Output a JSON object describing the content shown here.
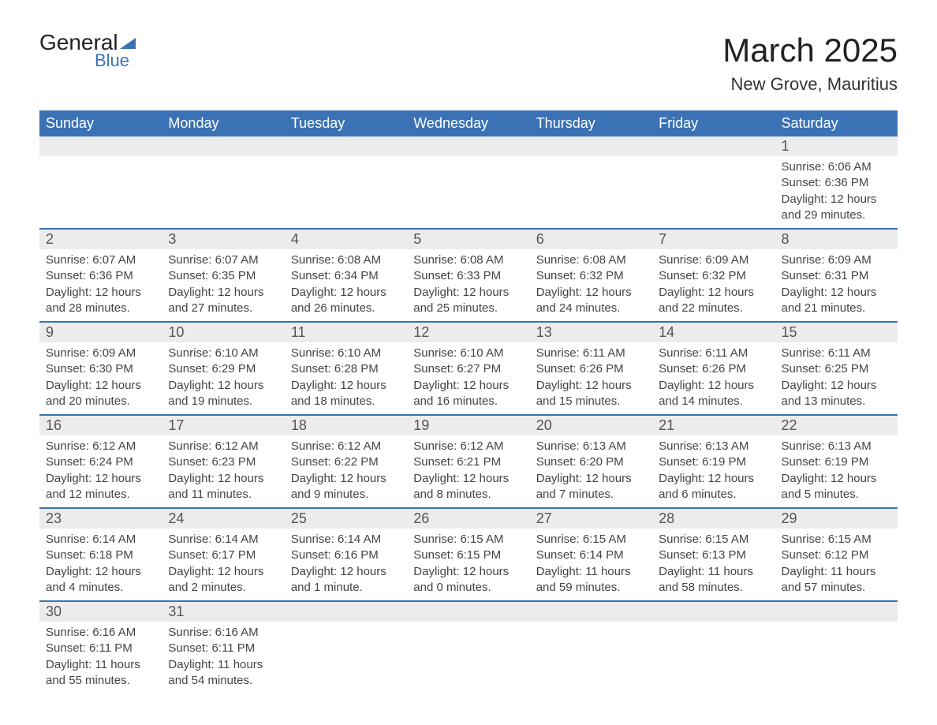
{
  "logo": {
    "text_dark": "General",
    "text_blue": "Blue"
  },
  "header": {
    "month_title": "March 2025",
    "location": "New Grove, Mauritius"
  },
  "calendar": {
    "colors": {
      "header_bg": "#3a72b5",
      "header_text": "#ffffff",
      "daynum_bg": "#ececec",
      "daynum_text": "#555555",
      "body_text": "#444444",
      "row_border": "#3a72b5"
    },
    "day_headers": [
      "Sunday",
      "Monday",
      "Tuesday",
      "Wednesday",
      "Thursday",
      "Friday",
      "Saturday"
    ],
    "weeks": [
      [
        null,
        null,
        null,
        null,
        null,
        null,
        {
          "n": "1",
          "sunrise": "Sunrise: 6:06 AM",
          "sunset": "Sunset: 6:36 PM",
          "d1": "Daylight: 12 hours",
          "d2": "and 29 minutes."
        }
      ],
      [
        {
          "n": "2",
          "sunrise": "Sunrise: 6:07 AM",
          "sunset": "Sunset: 6:36 PM",
          "d1": "Daylight: 12 hours",
          "d2": "and 28 minutes."
        },
        {
          "n": "3",
          "sunrise": "Sunrise: 6:07 AM",
          "sunset": "Sunset: 6:35 PM",
          "d1": "Daylight: 12 hours",
          "d2": "and 27 minutes."
        },
        {
          "n": "4",
          "sunrise": "Sunrise: 6:08 AM",
          "sunset": "Sunset: 6:34 PM",
          "d1": "Daylight: 12 hours",
          "d2": "and 26 minutes."
        },
        {
          "n": "5",
          "sunrise": "Sunrise: 6:08 AM",
          "sunset": "Sunset: 6:33 PM",
          "d1": "Daylight: 12 hours",
          "d2": "and 25 minutes."
        },
        {
          "n": "6",
          "sunrise": "Sunrise: 6:08 AM",
          "sunset": "Sunset: 6:32 PM",
          "d1": "Daylight: 12 hours",
          "d2": "and 24 minutes."
        },
        {
          "n": "7",
          "sunrise": "Sunrise: 6:09 AM",
          "sunset": "Sunset: 6:32 PM",
          "d1": "Daylight: 12 hours",
          "d2": "and 22 minutes."
        },
        {
          "n": "8",
          "sunrise": "Sunrise: 6:09 AM",
          "sunset": "Sunset: 6:31 PM",
          "d1": "Daylight: 12 hours",
          "d2": "and 21 minutes."
        }
      ],
      [
        {
          "n": "9",
          "sunrise": "Sunrise: 6:09 AM",
          "sunset": "Sunset: 6:30 PM",
          "d1": "Daylight: 12 hours",
          "d2": "and 20 minutes."
        },
        {
          "n": "10",
          "sunrise": "Sunrise: 6:10 AM",
          "sunset": "Sunset: 6:29 PM",
          "d1": "Daylight: 12 hours",
          "d2": "and 19 minutes."
        },
        {
          "n": "11",
          "sunrise": "Sunrise: 6:10 AM",
          "sunset": "Sunset: 6:28 PM",
          "d1": "Daylight: 12 hours",
          "d2": "and 18 minutes."
        },
        {
          "n": "12",
          "sunrise": "Sunrise: 6:10 AM",
          "sunset": "Sunset: 6:27 PM",
          "d1": "Daylight: 12 hours",
          "d2": "and 16 minutes."
        },
        {
          "n": "13",
          "sunrise": "Sunrise: 6:11 AM",
          "sunset": "Sunset: 6:26 PM",
          "d1": "Daylight: 12 hours",
          "d2": "and 15 minutes."
        },
        {
          "n": "14",
          "sunrise": "Sunrise: 6:11 AM",
          "sunset": "Sunset: 6:26 PM",
          "d1": "Daylight: 12 hours",
          "d2": "and 14 minutes."
        },
        {
          "n": "15",
          "sunrise": "Sunrise: 6:11 AM",
          "sunset": "Sunset: 6:25 PM",
          "d1": "Daylight: 12 hours",
          "d2": "and 13 minutes."
        }
      ],
      [
        {
          "n": "16",
          "sunrise": "Sunrise: 6:12 AM",
          "sunset": "Sunset: 6:24 PM",
          "d1": "Daylight: 12 hours",
          "d2": "and 12 minutes."
        },
        {
          "n": "17",
          "sunrise": "Sunrise: 6:12 AM",
          "sunset": "Sunset: 6:23 PM",
          "d1": "Daylight: 12 hours",
          "d2": "and 11 minutes."
        },
        {
          "n": "18",
          "sunrise": "Sunrise: 6:12 AM",
          "sunset": "Sunset: 6:22 PM",
          "d1": "Daylight: 12 hours",
          "d2": "and 9 minutes."
        },
        {
          "n": "19",
          "sunrise": "Sunrise: 6:12 AM",
          "sunset": "Sunset: 6:21 PM",
          "d1": "Daylight: 12 hours",
          "d2": "and 8 minutes."
        },
        {
          "n": "20",
          "sunrise": "Sunrise: 6:13 AM",
          "sunset": "Sunset: 6:20 PM",
          "d1": "Daylight: 12 hours",
          "d2": "and 7 minutes."
        },
        {
          "n": "21",
          "sunrise": "Sunrise: 6:13 AM",
          "sunset": "Sunset: 6:19 PM",
          "d1": "Daylight: 12 hours",
          "d2": "and 6 minutes."
        },
        {
          "n": "22",
          "sunrise": "Sunrise: 6:13 AM",
          "sunset": "Sunset: 6:19 PM",
          "d1": "Daylight: 12 hours",
          "d2": "and 5 minutes."
        }
      ],
      [
        {
          "n": "23",
          "sunrise": "Sunrise: 6:14 AM",
          "sunset": "Sunset: 6:18 PM",
          "d1": "Daylight: 12 hours",
          "d2": "and 4 minutes."
        },
        {
          "n": "24",
          "sunrise": "Sunrise: 6:14 AM",
          "sunset": "Sunset: 6:17 PM",
          "d1": "Daylight: 12 hours",
          "d2": "and 2 minutes."
        },
        {
          "n": "25",
          "sunrise": "Sunrise: 6:14 AM",
          "sunset": "Sunset: 6:16 PM",
          "d1": "Daylight: 12 hours",
          "d2": "and 1 minute."
        },
        {
          "n": "26",
          "sunrise": "Sunrise: 6:15 AM",
          "sunset": "Sunset: 6:15 PM",
          "d1": "Daylight: 12 hours",
          "d2": "and 0 minutes."
        },
        {
          "n": "27",
          "sunrise": "Sunrise: 6:15 AM",
          "sunset": "Sunset: 6:14 PM",
          "d1": "Daylight: 11 hours",
          "d2": "and 59 minutes."
        },
        {
          "n": "28",
          "sunrise": "Sunrise: 6:15 AM",
          "sunset": "Sunset: 6:13 PM",
          "d1": "Daylight: 11 hours",
          "d2": "and 58 minutes."
        },
        {
          "n": "29",
          "sunrise": "Sunrise: 6:15 AM",
          "sunset": "Sunset: 6:12 PM",
          "d1": "Daylight: 11 hours",
          "d2": "and 57 minutes."
        }
      ],
      [
        {
          "n": "30",
          "sunrise": "Sunrise: 6:16 AM",
          "sunset": "Sunset: 6:11 PM",
          "d1": "Daylight: 11 hours",
          "d2": "and 55 minutes."
        },
        {
          "n": "31",
          "sunrise": "Sunrise: 6:16 AM",
          "sunset": "Sunset: 6:11 PM",
          "d1": "Daylight: 11 hours",
          "d2": "and 54 minutes."
        },
        null,
        null,
        null,
        null,
        null
      ]
    ]
  }
}
